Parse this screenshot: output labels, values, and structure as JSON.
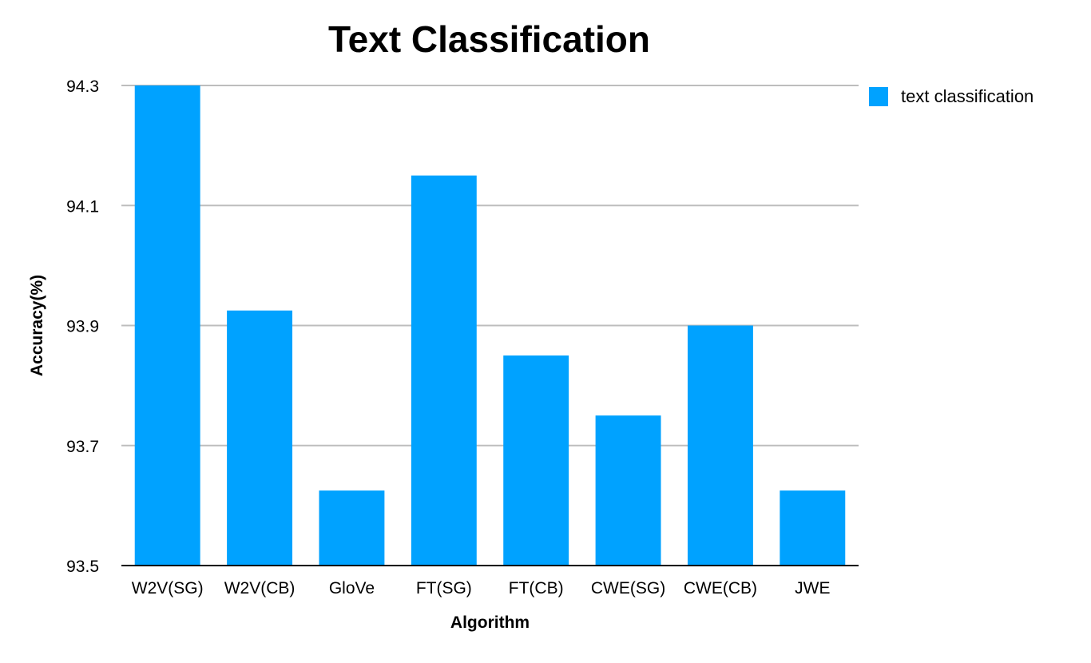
{
  "chart_data": {
    "type": "bar",
    "title": "Text Classification",
    "xlabel": "Algorithm",
    "ylabel": "Accuracy(%)",
    "categories": [
      "W2V(SG)",
      "W2V(CB)",
      "GloVe",
      "FT(SG)",
      "FT(CB)",
      "CWE(SG)",
      "CWE(CB)",
      "JWE"
    ],
    "series": [
      {
        "name": "text classification",
        "color": "#00a2ff",
        "values": [
          94.3,
          93.925,
          93.625,
          94.15,
          93.85,
          93.75,
          93.9,
          93.625
        ]
      }
    ],
    "ylim": [
      93.5,
      94.3
    ],
    "yticks": [
      "93.5",
      "93.7",
      "93.9",
      "94.1",
      "94.3"
    ],
    "grid": true,
    "legend_position": "top-right"
  }
}
